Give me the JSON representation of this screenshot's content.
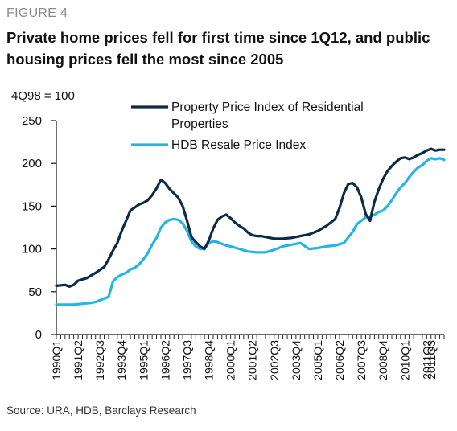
{
  "figure_label": "FIGURE 4",
  "title": "Private home prices fell for first time since 1Q12, and public housing prices fell the most since 2005",
  "source": "Source: URA, HDB, Barclays Research",
  "colors": {
    "property": "#0d2b45",
    "hdb": "#24b4e6",
    "axis": "#111111"
  },
  "chart_data": {
    "type": "line",
    "ylabel": "4Q98 = 100",
    "ylim": [
      0,
      250
    ],
    "yticks": [
      0,
      50,
      100,
      150,
      200,
      250
    ],
    "xrange": [
      1990.0,
      2012.25
    ],
    "xticks": [
      {
        "label": "1990Q1",
        "x": 1990.0
      },
      {
        "label": "1991Q2",
        "x": 1991.25
      },
      {
        "label": "1992Q3",
        "x": 1992.5
      },
      {
        "label": "1993Q4",
        "x": 1993.75
      },
      {
        "label": "1995Q1",
        "x": 1995.0
      },
      {
        "label": "1996Q2",
        "x": 1996.25
      },
      {
        "label": "1997Q3",
        "x": 1997.5
      },
      {
        "label": "1998Q4",
        "x": 1998.75
      },
      {
        "label": "2000Q1",
        "x": 2000.0
      },
      {
        "label": "2001Q2",
        "x": 2001.25
      },
      {
        "label": "2002Q3",
        "x": 2002.5
      },
      {
        "label": "2003Q4",
        "x": 2003.75
      },
      {
        "label": "2005Q1",
        "x": 2005.0
      },
      {
        "label": "2006Q2",
        "x": 2006.25
      },
      {
        "label": "2007Q3",
        "x": 2007.5
      },
      {
        "label": "2008Q4",
        "x": 2008.75
      },
      {
        "label": "2010Q1",
        "x": 2010.0
      },
      {
        "label": "2011Q2",
        "x": 2011.25
      },
      {
        "label": "2011Q3",
        "x": 2011.5
      }
    ],
    "grid": false,
    "legend_position": "top",
    "series": [
      {
        "name": "Property Price Index of Residential Properties",
        "color": "#0d2b45",
        "x": [
          1990.0,
          1990.5,
          1990.75,
          1991.0,
          1991.25,
          1991.75,
          1992.25,
          1992.75,
          1993.0,
          1993.25,
          1993.5,
          1993.75,
          1994.25,
          1994.75,
          1995.0,
          1995.25,
          1995.5,
          1995.75,
          1996.0,
          1996.25,
          1996.5,
          1996.75,
          1997.0,
          1997.25,
          1997.5,
          1997.75,
          1998.0,
          1998.25,
          1998.5,
          1998.75,
          1999.0,
          1999.25,
          1999.5,
          1999.75,
          2000.0,
          2000.25,
          2000.5,
          2000.75,
          2001.0,
          2001.25,
          2001.5,
          2001.75,
          2002.0,
          2002.5,
          2003.0,
          2003.5,
          2004.0,
          2004.5,
          2005.0,
          2005.5,
          2006.0,
          2006.25,
          2006.5,
          2006.75,
          2007.0,
          2007.25,
          2007.5,
          2007.75,
          2008.0,
          2008.25,
          2008.5,
          2008.75,
          2009.0,
          2009.25,
          2009.5,
          2009.75,
          2010.0,
          2010.25,
          2010.5,
          2010.75,
          2011.0,
          2011.25,
          2011.5,
          2011.75,
          2012.0,
          2012.25
        ],
        "values": [
          57,
          58,
          56,
          58,
          63,
          66,
          72,
          79,
          88,
          98,
          107,
          121,
          145,
          152,
          154,
          157,
          163,
          171,
          181,
          177,
          170,
          165,
          160,
          150,
          133,
          114,
          108,
          103,
          100,
          110,
          124,
          134,
          138,
          140,
          136,
          131,
          127,
          124,
          119,
          116,
          115,
          115,
          114,
          112,
          112,
          113,
          115,
          117,
          121,
          127,
          135,
          148,
          165,
          176,
          177,
          172,
          160,
          141,
          133,
          155,
          170,
          182,
          191,
          197,
          202,
          206,
          207,
          205,
          207,
          210,
          212,
          215,
          217,
          215,
          216,
          216
        ]
      },
      {
        "name": "HDB Resale Price Index",
        "color": "#24b4e6",
        "x": [
          1990.0,
          1990.5,
          1991.0,
          1991.5,
          1992.0,
          1992.25,
          1992.5,
          1992.75,
          1993.0,
          1993.25,
          1993.5,
          1993.75,
          1994.0,
          1994.25,
          1994.5,
          1994.75,
          1995.0,
          1995.25,
          1995.5,
          1995.75,
          1996.0,
          1996.25,
          1996.5,
          1996.75,
          1997.0,
          1997.25,
          1997.5,
          1997.75,
          1998.0,
          1998.25,
          1998.5,
          1998.75,
          1999.0,
          1999.25,
          1999.5,
          1999.75,
          2000.0,
          2000.5,
          2001.0,
          2001.5,
          2002.0,
          2002.5,
          2003.0,
          2003.5,
          2004.0,
          2004.5,
          2005.0,
          2005.5,
          2006.0,
          2006.5,
          2007.0,
          2007.25,
          2007.5,
          2007.75,
          2008.0,
          2008.25,
          2008.5,
          2008.75,
          2009.0,
          2009.25,
          2009.5,
          2009.75,
          2010.0,
          2010.25,
          2010.5,
          2010.75,
          2011.0,
          2011.25,
          2011.5,
          2011.75,
          2012.0,
          2012.25
        ],
        "values": [
          35,
          35,
          35,
          36,
          37,
          38,
          40,
          42,
          44,
          62,
          67,
          70,
          72,
          76,
          78,
          82,
          88,
          95,
          105,
          113,
          125,
          131,
          134,
          135,
          134,
          130,
          121,
          109,
          103,
          100,
          100,
          107,
          109,
          108,
          106,
          104,
          103,
          100,
          97,
          96,
          96,
          99,
          103,
          105,
          107,
          100,
          101,
          103,
          104,
          107,
          120,
          129,
          133,
          137,
          138,
          140,
          143,
          145,
          150,
          157,
          165,
          172,
          177,
          184,
          190,
          195,
          198,
          203,
          206,
          205,
          206,
          204
        ]
      }
    ]
  }
}
